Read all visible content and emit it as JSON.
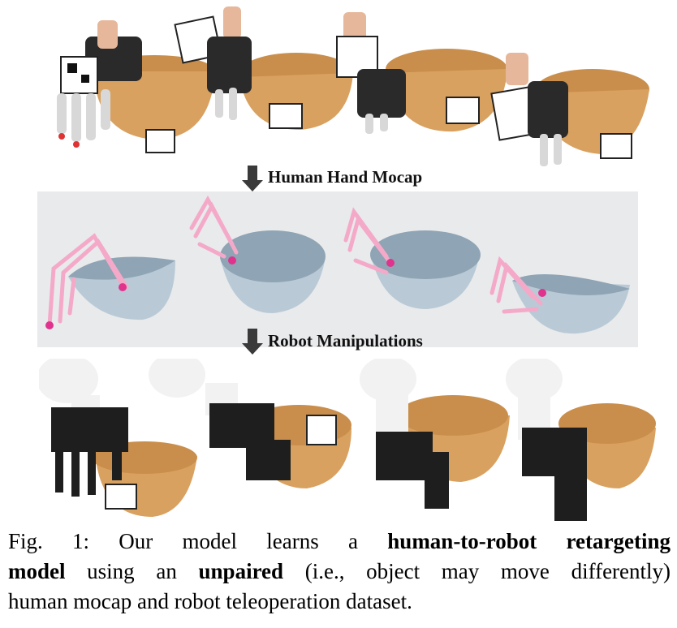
{
  "figure": {
    "arrow_labels": {
      "mocap": "Human Hand Mocap",
      "robot": "Robot Manipulations"
    },
    "caption": {
      "prefix": "Fig. 1: Our model learns a",
      "bold1": "human-to-robot retargeting",
      "bold2": "model",
      "mid1": "using an",
      "bold3": "unpaired",
      "mid2": "(i.e., object may move differently)",
      "end": "human mocap and robot teleoperation dataset."
    },
    "colors": {
      "bowl_wood": "#d9a15f",
      "bowl_sim": "#b9cad6",
      "hand_sim": "#f4a9c8",
      "fingertip": "#e0338d",
      "robot_white": "#f2f2f2",
      "robot_black": "#1e1e1e",
      "arrow": "#3a3a3a"
    }
  }
}
